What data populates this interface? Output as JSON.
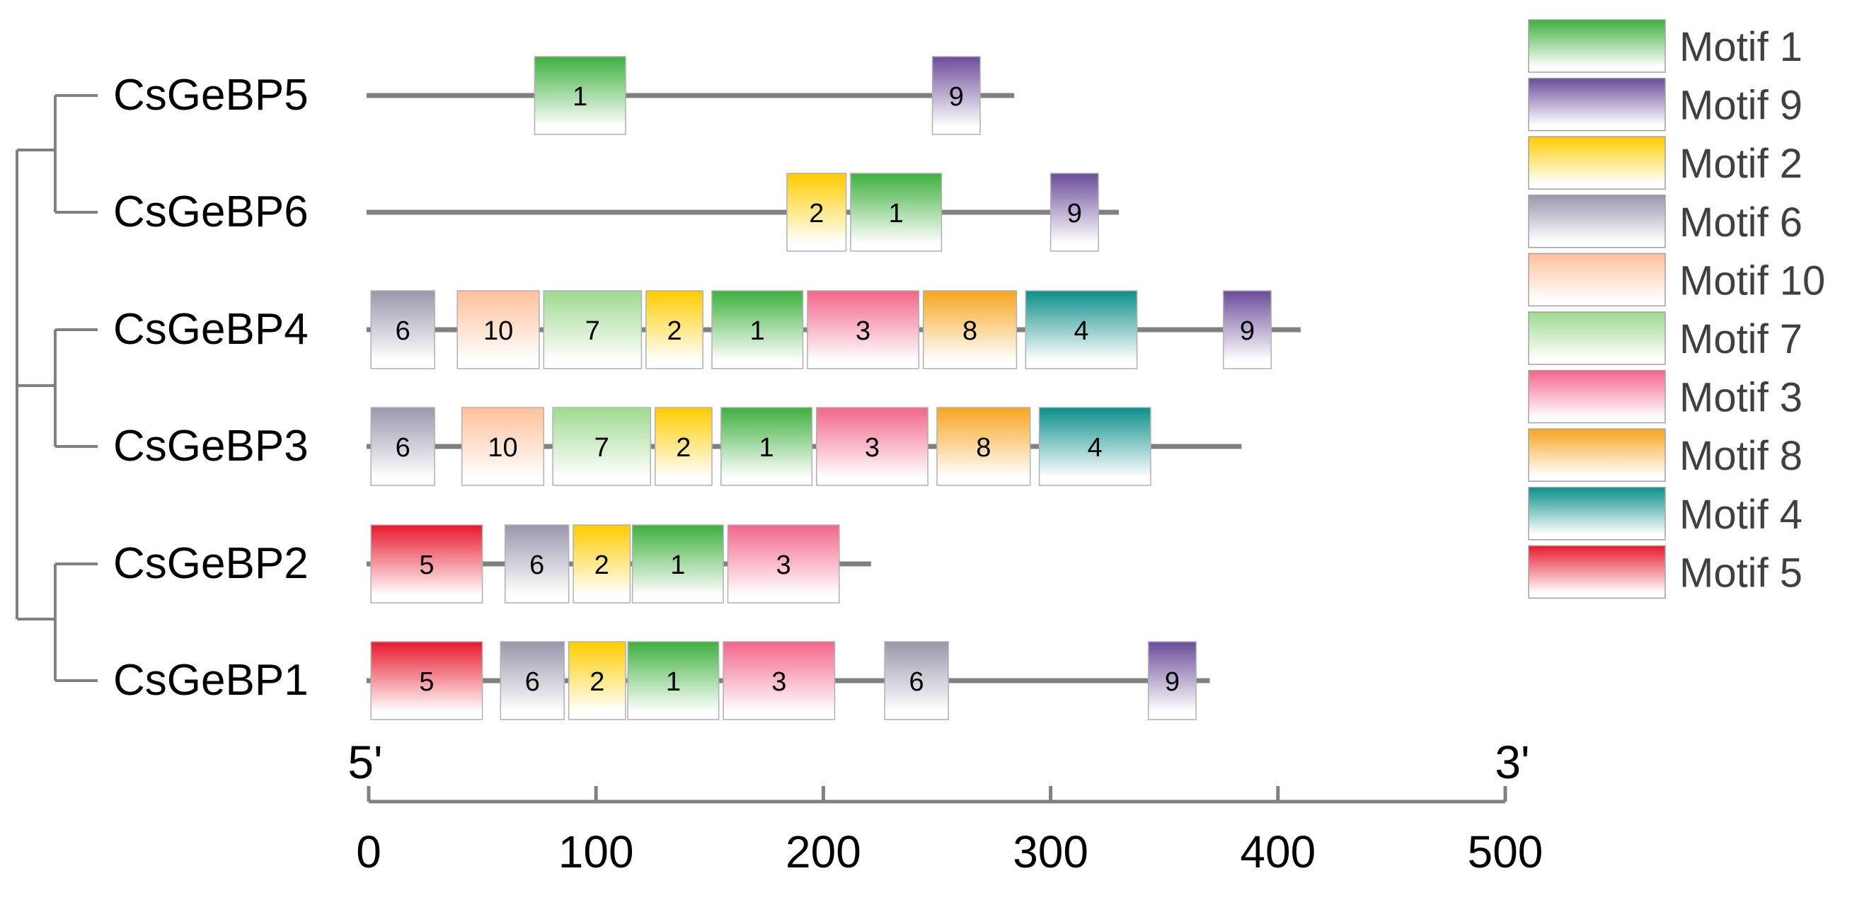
{
  "proteins": [
    {
      "name": "CsGeBP5",
      "length": 284,
      "motifs": [
        {
          "id": "1",
          "start": 73,
          "end": 113
        },
        {
          "id": "9",
          "start": 248,
          "end": 269
        }
      ]
    },
    {
      "name": "CsGeBP6",
      "length": 330,
      "motifs": [
        {
          "id": "2",
          "start": 184,
          "end": 210
        },
        {
          "id": "1",
          "start": 212,
          "end": 252
        },
        {
          "id": "9",
          "start": 300,
          "end": 321
        }
      ]
    },
    {
      "name": "CsGeBP4",
      "length": 410,
      "motifs": [
        {
          "id": "6",
          "start": 1,
          "end": 29
        },
        {
          "id": "10",
          "start": 39,
          "end": 75
        },
        {
          "id": "7",
          "start": 77,
          "end": 120
        },
        {
          "id": "2",
          "start": 122,
          "end": 147
        },
        {
          "id": "1",
          "start": 151,
          "end": 191
        },
        {
          "id": "3",
          "start": 193,
          "end": 242
        },
        {
          "id": "8",
          "start": 244,
          "end": 285
        },
        {
          "id": "4",
          "start": 289,
          "end": 338
        },
        {
          "id": "9",
          "start": 376,
          "end": 397
        }
      ]
    },
    {
      "name": "CsGeBP3",
      "length": 384,
      "motifs": [
        {
          "id": "6",
          "start": 1,
          "end": 29
        },
        {
          "id": "10",
          "start": 41,
          "end": 77
        },
        {
          "id": "7",
          "start": 81,
          "end": 124
        },
        {
          "id": "2",
          "start": 126,
          "end": 151
        },
        {
          "id": "1",
          "start": 155,
          "end": 195
        },
        {
          "id": "3",
          "start": 197,
          "end": 246
        },
        {
          "id": "8",
          "start": 250,
          "end": 291
        },
        {
          "id": "4",
          "start": 295,
          "end": 344
        }
      ]
    },
    {
      "name": "CsGeBP2",
      "length": 221,
      "motifs": [
        {
          "id": "5",
          "start": 1,
          "end": 50
        },
        {
          "id": "6",
          "start": 60,
          "end": 88
        },
        {
          "id": "2",
          "start": 90,
          "end": 115
        },
        {
          "id": "1",
          "start": 116,
          "end": 156
        },
        {
          "id": "3",
          "start": 158,
          "end": 207
        }
      ]
    },
    {
      "name": "CsGeBP1",
      "length": 370,
      "motifs": [
        {
          "id": "5",
          "start": 1,
          "end": 50
        },
        {
          "id": "6",
          "start": 58,
          "end": 86
        },
        {
          "id": "2",
          "start": 88,
          "end": 113
        },
        {
          "id": "1",
          "start": 114,
          "end": 154
        },
        {
          "id": "3",
          "start": 156,
          "end": 205
        },
        {
          "id": "6",
          "start": 227,
          "end": 255
        },
        {
          "id": "9",
          "start": 343,
          "end": 364
        }
      ]
    }
  ],
  "legend": [
    {
      "id": "1",
      "label": "Motif 1",
      "color": "#3db03d"
    },
    {
      "id": "9",
      "label": "Motif 9",
      "color": "#6b4c9a"
    },
    {
      "id": "2",
      "label": "Motif 2",
      "color": "#ffcc00"
    },
    {
      "id": "6",
      "label": "Motif 6",
      "color": "#9a97ad"
    },
    {
      "id": "10",
      "label": "Motif 10",
      "color": "#ffc09a"
    },
    {
      "id": "7",
      "label": "Motif 7",
      "color": "#9fd98f"
    },
    {
      "id": "3",
      "label": "Motif 3",
      "color": "#f2668a"
    },
    {
      "id": "8",
      "label": "Motif 8",
      "color": "#f7a51f"
    },
    {
      "id": "4",
      "label": "Motif 4",
      "color": "#0b8f8a"
    },
    {
      "id": "5",
      "label": "Motif 5",
      "color": "#e8182d"
    }
  ],
  "axis": {
    "left_end": "5'",
    "right_end": "3'",
    "range": [
      0,
      500
    ],
    "ticks": [
      "0",
      "100",
      "200",
      "300",
      "400",
      "500"
    ]
  },
  "colors": {
    "line": "#808080",
    "tree": "#808080",
    "text": "#000000",
    "legend_text": "#404040"
  }
}
